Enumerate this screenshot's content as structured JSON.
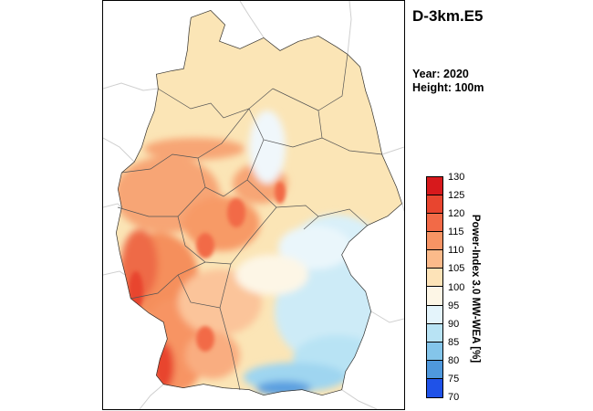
{
  "title": "D-3km.E5",
  "year_label": "Year: 2020",
  "height_label": "Height: 100m",
  "colorbar": {
    "label": "Power-Index 3.0 MW-WEA [%]",
    "ticks": [
      "130",
      "125",
      "120",
      "115",
      "110",
      "105",
      "100",
      "95",
      "90",
      "85",
      "80",
      "75",
      "70"
    ],
    "colors": [
      "#d7191c",
      "#e8452f",
      "#f26a47",
      "#f79464",
      "#fbba8a",
      "#fde3b8",
      "#fdf6e6",
      "#e4f4fb",
      "#b8e3f4",
      "#84c5ea",
      "#4f98dc",
      "#1f52e8"
    ]
  },
  "map": {
    "background_color": "#fbe5b6",
    "neighbor_border_color": "#cfcfcf",
    "state_border_color": "#555555"
  }
}
